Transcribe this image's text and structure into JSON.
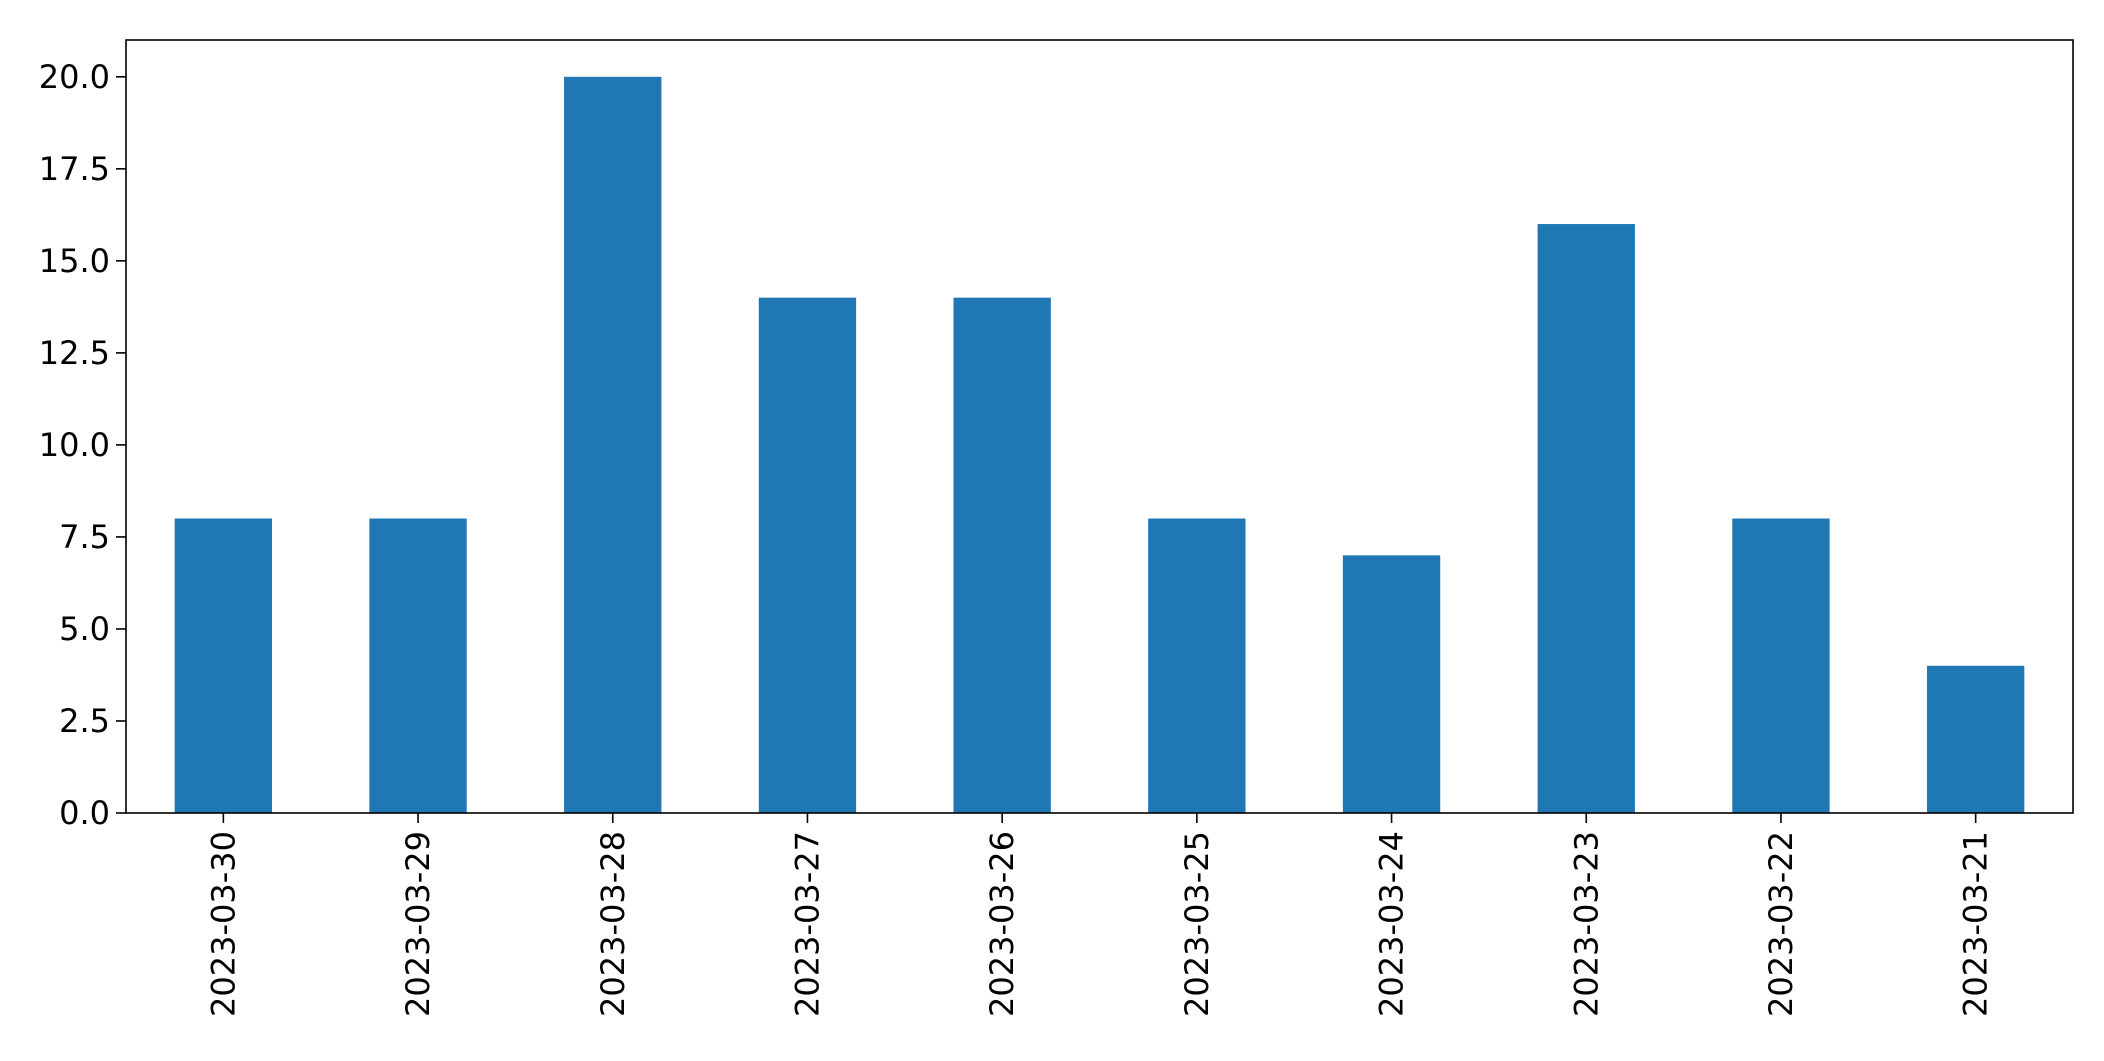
{
  "chart_data": {
    "type": "bar",
    "title": "",
    "xlabel": "",
    "ylabel": "",
    "categories": [
      "2023-03-30",
      "2023-03-29",
      "2023-03-28",
      "2023-03-27",
      "2023-03-26",
      "2023-03-25",
      "2023-03-24",
      "2023-03-23",
      "2023-03-22",
      "2023-03-21"
    ],
    "values": [
      8,
      8,
      20,
      14,
      14,
      8,
      7,
      16,
      8,
      4
    ],
    "ylim": [
      0,
      21
    ],
    "yticks": [
      "0.0",
      "2.5",
      "5.0",
      "7.5",
      "10.0",
      "12.5",
      "15.0",
      "17.5",
      "20.0"
    ],
    "ytick_values": [
      0,
      2.5,
      5,
      7.5,
      10,
      12.5,
      15,
      17.5,
      20
    ],
    "grid": false,
    "legend": "none",
    "bar_color": "#1f77b4"
  }
}
